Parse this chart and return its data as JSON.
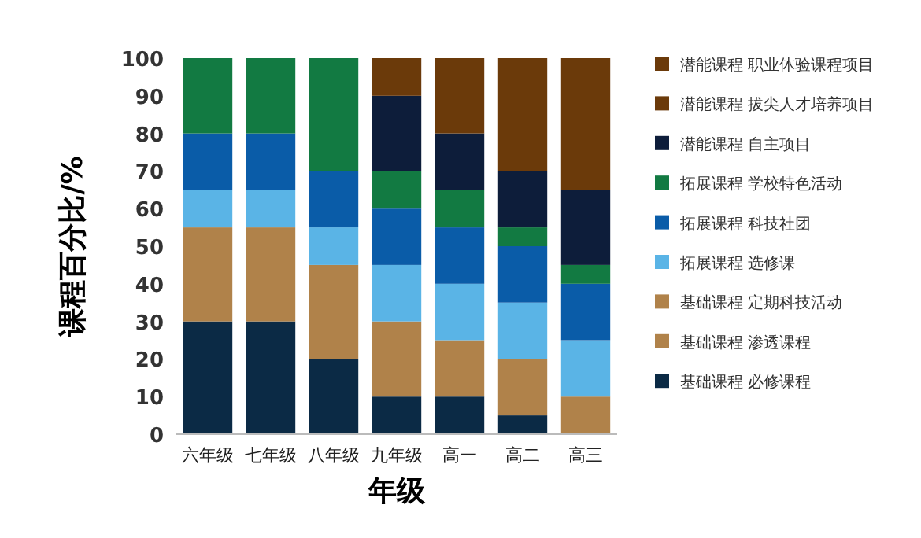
{
  "chart_data": {
    "type": "bar",
    "stacked": true,
    "xlabel": "年级",
    "ylabel": "课程百分比/%",
    "categories": [
      "六年级",
      "七年级",
      "八年级",
      "九年级",
      "高一",
      "高二",
      "高三"
    ],
    "ylim": [
      0,
      100
    ],
    "yticks": [
      0,
      10,
      20,
      30,
      40,
      50,
      60,
      70,
      80,
      90,
      100
    ],
    "legend": "right",
    "series": [
      {
        "name": "基础课程 必修课程",
        "color": "#0b2a45",
        "values": [
          30,
          30,
          20,
          10,
          10,
          5,
          0
        ]
      },
      {
        "name": "基础课程 渗透课程",
        "color": "#b0824a",
        "values": [
          25,
          25,
          25,
          20,
          15,
          15,
          10
        ]
      },
      {
        "name": "基础课程 定期科技活动",
        "color": "#b0824a",
        "values": [
          0,
          0,
          0,
          0,
          0,
          0,
          0
        ]
      },
      {
        "name": "拓展课程 选修课",
        "color": "#5ab4e6",
        "values": [
          10,
          10,
          10,
          15,
          15,
          15,
          15
        ]
      },
      {
        "name": "拓展课程 科技社团",
        "color": "#0a5ca8",
        "values": [
          15,
          15,
          15,
          15,
          15,
          15,
          15
        ]
      },
      {
        "name": "拓展课程 学校特色活动",
        "color": "#127a42",
        "values": [
          20,
          20,
          30,
          10,
          10,
          5,
          5
        ]
      },
      {
        "name": "潜能课程 自主项目",
        "color": "#0d1d3a",
        "values": [
          0,
          0,
          0,
          20,
          15,
          15,
          20
        ]
      },
      {
        "name": "潜能课程 拔尖人才培养项目",
        "color": "#6b3a0a",
        "values": [
          0,
          0,
          0,
          0,
          0,
          0,
          0
        ]
      },
      {
        "name": "潜能课程 职业体验课程项目",
        "color": "#6b3a0a",
        "values": [
          0,
          0,
          0,
          10,
          20,
          30,
          35
        ]
      }
    ]
  }
}
